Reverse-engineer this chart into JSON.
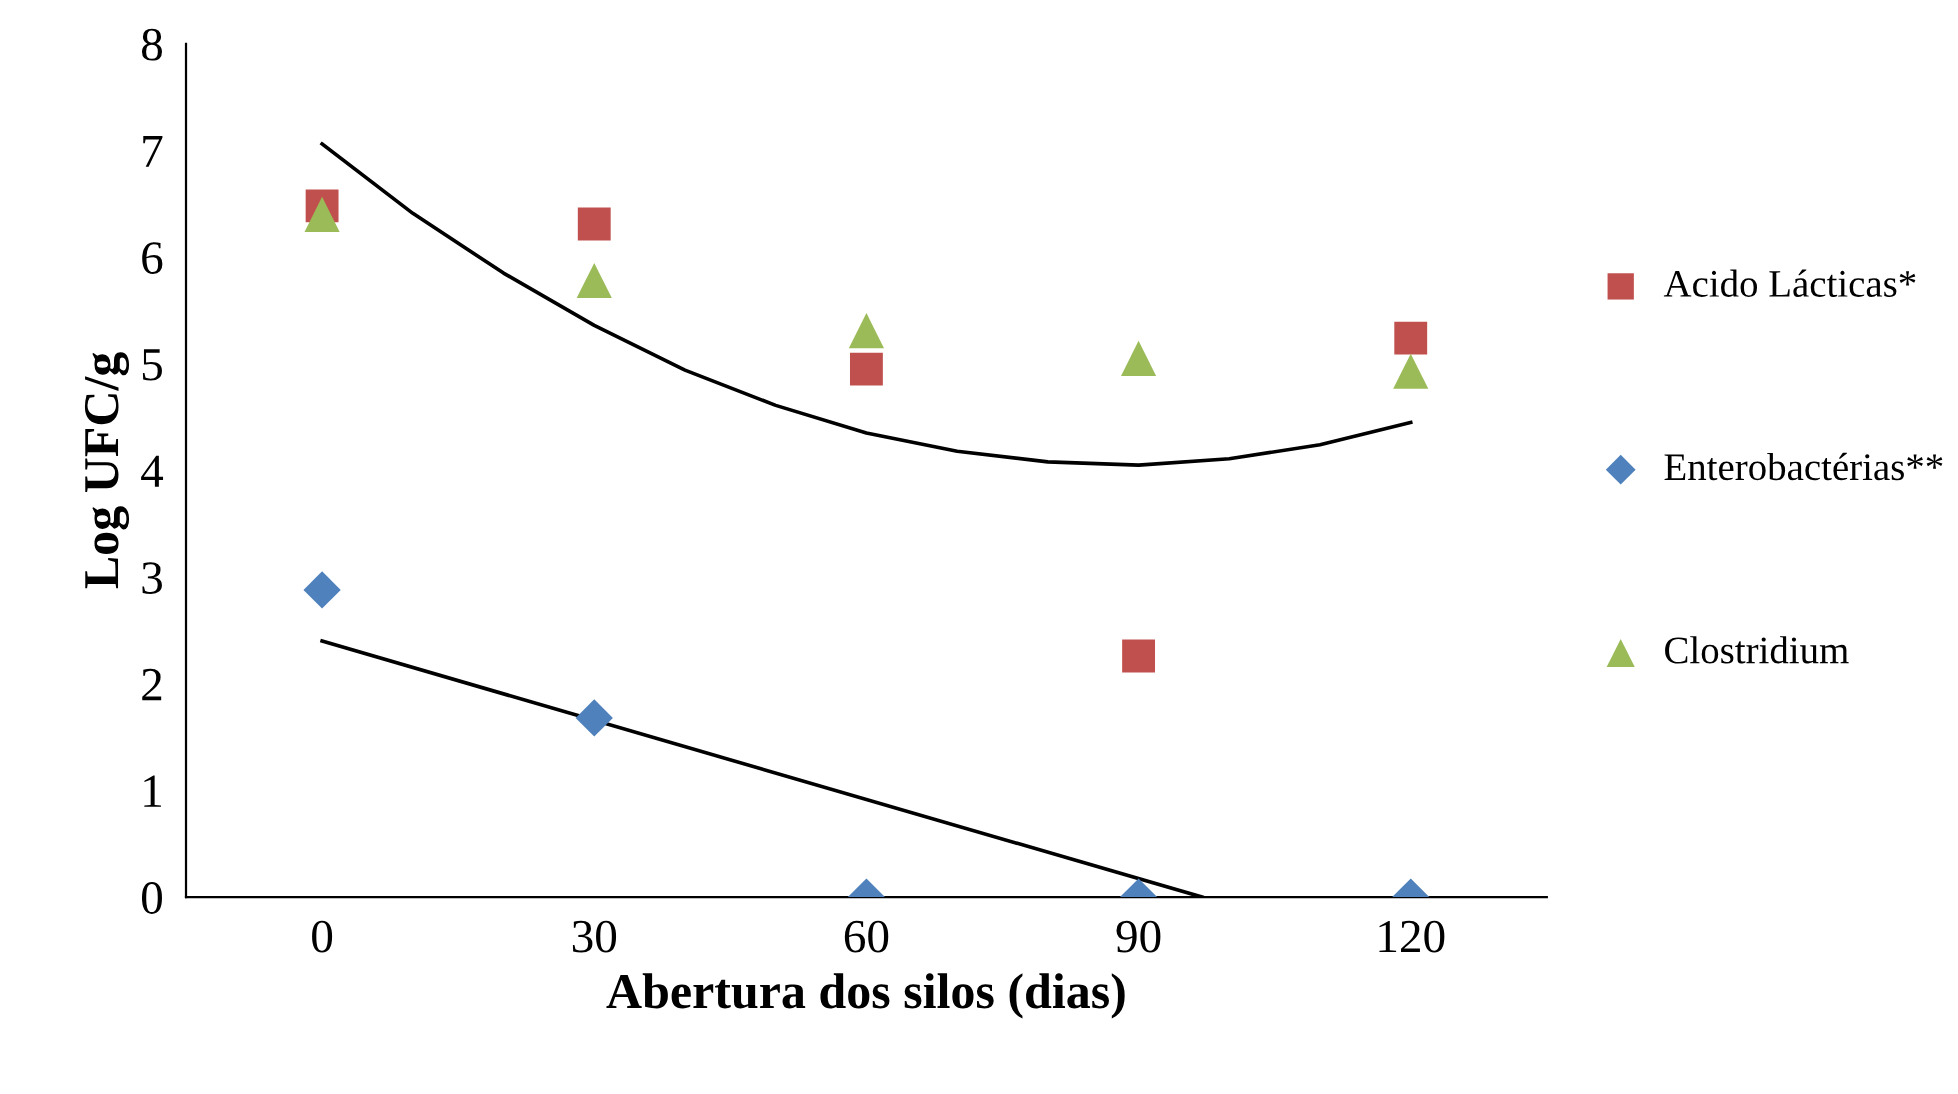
{
  "chart_data": {
    "type": "scatter",
    "xlabel": "Abertura dos silos (dias)",
    "ylabel": "Log UFC/g",
    "x": [
      0,
      30,
      60,
      90,
      120
    ],
    "series": [
      {
        "name": "Acido Lácticas*",
        "color": "#c0504d",
        "marker": "square",
        "values": [
          6.48,
          6.31,
          4.95,
          2.26,
          5.24
        ]
      },
      {
        "name": "Enterobactérias**",
        "color": "#4f81bd",
        "marker": "diamond",
        "values": [
          2.88,
          1.68,
          0,
          0,
          0
        ]
      },
      {
        "name": "Clostridium",
        "color": "#9bbb59",
        "marker": "triangle",
        "values": [
          6.4,
          5.78,
          5.31,
          5.05,
          4.93
        ]
      },
      {
        "type": "line",
        "color": "#000000",
        "x": [
          0,
          10,
          20,
          30,
          40,
          50,
          60,
          70,
          80,
          90,
          100,
          110,
          120
        ],
        "values": [
          7.06,
          6.41,
          5.85,
          5.36,
          4.94,
          4.61,
          4.35,
          4.18,
          4.08,
          4.05,
          4.11,
          4.24,
          4.45
        ]
      },
      {
        "type": "line",
        "color": "#000000",
        "x": [
          0,
          97
        ],
        "values": [
          2.4,
          0
        ]
      }
    ],
    "xlim": [
      -15,
      135
    ],
    "xticks": [
      0,
      30,
      60,
      90,
      120
    ],
    "ylim": [
      0,
      8
    ],
    "yticks": [
      0,
      1,
      2,
      3,
      4,
      5,
      6,
      7,
      8
    ],
    "grid": false,
    "legend": "right"
  }
}
